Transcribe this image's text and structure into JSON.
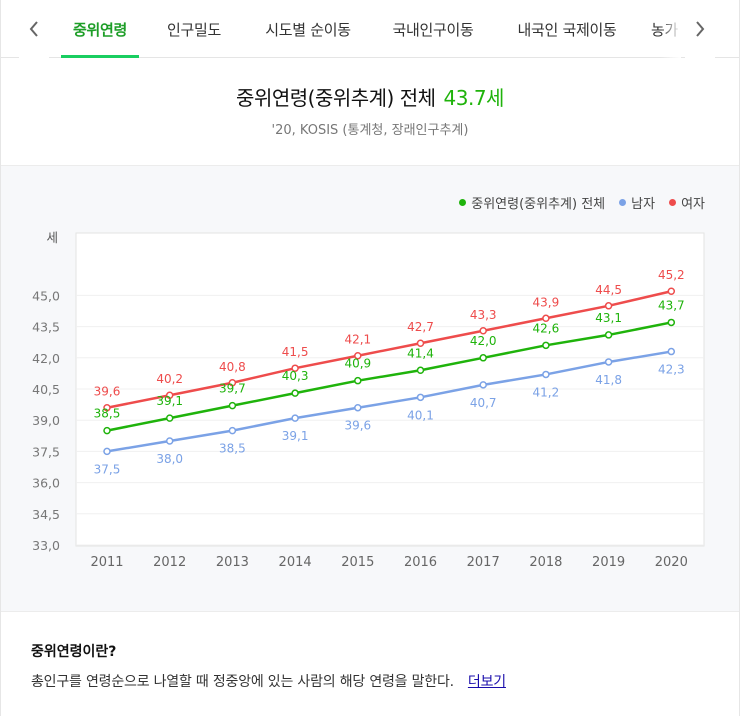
{
  "tabs": {
    "prev_icon": "chevron-left-icon",
    "next_icon": "chevron-right-icon",
    "items": [
      {
        "label": "중위연령",
        "active": true
      },
      {
        "label": "인구밀도",
        "active": false
      },
      {
        "label": "시도별 순이동",
        "active": false
      },
      {
        "label": "국내인구이동",
        "active": false
      },
      {
        "label": "내국인 국제이동",
        "active": false
      },
      {
        "label": "농가",
        "active": false
      }
    ]
  },
  "header": {
    "title": "중위연령(중위추계) 전체",
    "value": "43.7세",
    "source": "'20, KOSIS (통계청, 장래인구추계)"
  },
  "colors": {
    "total": "#1fb30b",
    "male": "#7ba2e6",
    "female": "#ee4c4c",
    "active_tab": "#1e9e28"
  },
  "legend": [
    {
      "label": "중위연령(중위추계) 전체",
      "color": "#1fb30b"
    },
    {
      "label": "남자",
      "color": "#7ba2e6"
    },
    {
      "label": "여자",
      "color": "#ee4c4c"
    }
  ],
  "chart_data": {
    "type": "line",
    "title": "중위연령(중위추계) 전체",
    "ylabel": "세",
    "xlabel": "",
    "ylim": [
      33.0,
      46.5
    ],
    "yticks": [
      "33,0",
      "34,5",
      "36,0",
      "37,5",
      "39,0",
      "40,5",
      "42,0",
      "43,5",
      "45,0"
    ],
    "ytick_values": [
      33.0,
      34.5,
      36.0,
      37.5,
      39.0,
      40.5,
      42.0,
      43.5,
      45.0
    ],
    "categories": [
      "2011",
      "2012",
      "2013",
      "2014",
      "2015",
      "2016",
      "2017",
      "2018",
      "2019",
      "2020"
    ],
    "series": [
      {
        "name": "여자",
        "key": "female",
        "color": "#ee4c4c",
        "values": [
          39.6,
          40.2,
          40.8,
          41.5,
          42.1,
          42.7,
          43.3,
          43.9,
          44.5,
          45.2
        ],
        "labels": [
          "39,6",
          "40,2",
          "40,8",
          "41,5",
          "42,1",
          "42,7",
          "43,3",
          "43,9",
          "44,5",
          "45,2"
        ]
      },
      {
        "name": "중위연령(중위추계) 전체",
        "key": "total",
        "color": "#1fb30b",
        "values": [
          38.5,
          39.1,
          39.7,
          40.3,
          40.9,
          41.4,
          42.0,
          42.6,
          43.1,
          43.7
        ],
        "labels": [
          "38,5",
          "39,1",
          "39,7",
          "40,3",
          "40,9",
          "41,4",
          "42,0",
          "42,6",
          "43,1",
          "43,7"
        ]
      },
      {
        "name": "남자",
        "key": "male",
        "color": "#7ba2e6",
        "values": [
          37.5,
          38.0,
          38.5,
          39.1,
          39.6,
          40.1,
          40.7,
          41.2,
          41.8,
          42.3
        ],
        "labels": [
          "37,5",
          "38,0",
          "38,5",
          "39,1",
          "39,6",
          "40,1",
          "40,7",
          "41,2",
          "41,8",
          "42,3"
        ]
      }
    ]
  },
  "footer": {
    "title": "중위연령이란?",
    "description": "총인구를 연령순으로 나열할 때 정중앙에 있는 사람의 해당 연령을 말한다.",
    "more_label": "더보기"
  }
}
